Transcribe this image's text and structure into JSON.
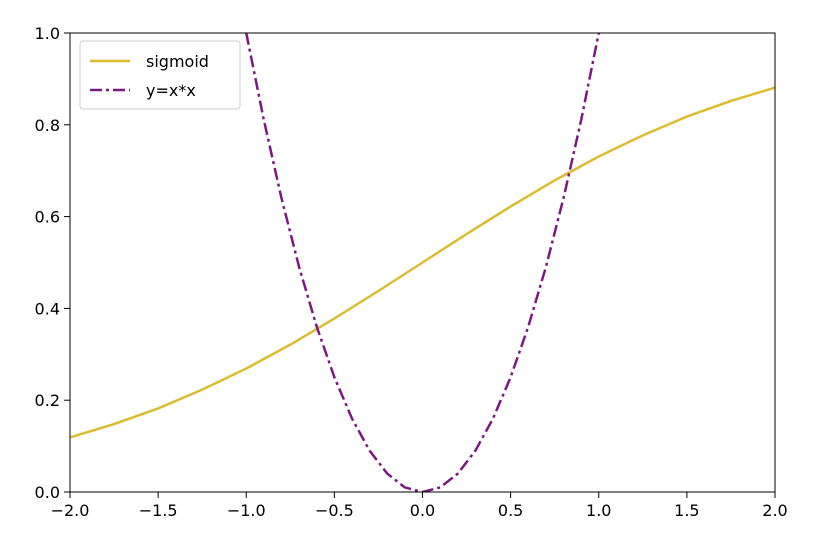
{
  "chart_data": {
    "type": "line",
    "title": "",
    "xlabel": "",
    "ylabel": "",
    "xlim": [
      -2.0,
      2.0
    ],
    "ylim": [
      0.0,
      1.0
    ],
    "grid": false,
    "legend_position": "top-left",
    "x_ticks": [
      -2.0,
      -1.5,
      -1.0,
      -0.5,
      0.0,
      0.5,
      1.0,
      1.5,
      2.0
    ],
    "x_tick_labels": [
      "−2.0",
      "−1.5",
      "−1.0",
      "−0.5",
      "0.0",
      "0.5",
      "1.0",
      "1.5",
      "2.0"
    ],
    "y_ticks": [
      0.0,
      0.2,
      0.4,
      0.6,
      0.8,
      1.0
    ],
    "y_tick_labels": [
      "0.0",
      "0.2",
      "0.4",
      "0.6",
      "0.8",
      "1.0"
    ],
    "series": [
      {
        "name": "sigmoid",
        "color": "#dbbd2f",
        "line_style": "solid",
        "x": [
          -2.0,
          -1.75,
          -1.5,
          -1.25,
          -1.0,
          -0.75,
          -0.5,
          -0.25,
          0.0,
          0.25,
          0.5,
          0.75,
          1.0,
          1.25,
          1.5,
          1.75,
          2.0
        ],
        "y": [
          0.119,
          0.148,
          0.182,
          0.223,
          0.269,
          0.321,
          0.378,
          0.438,
          0.5,
          0.562,
          0.622,
          0.679,
          0.731,
          0.777,
          0.818,
          0.852,
          0.881
        ]
      },
      {
        "name": "y=x*x",
        "color": "#7b1a7e",
        "line_style": "dashdot",
        "x": [
          -1.0,
          -0.9,
          -0.8,
          -0.7,
          -0.6,
          -0.5,
          -0.4,
          -0.3,
          -0.2,
          -0.1,
          0.0,
          0.1,
          0.2,
          0.3,
          0.4,
          0.5,
          0.6,
          0.7,
          0.8,
          0.9,
          1.0
        ],
        "y": [
          1.0,
          0.81,
          0.64,
          0.49,
          0.36,
          0.25,
          0.16,
          0.09,
          0.04,
          0.01,
          0.0,
          0.01,
          0.04,
          0.09,
          0.16,
          0.25,
          0.36,
          0.49,
          0.64,
          0.81,
          1.0
        ]
      }
    ]
  }
}
